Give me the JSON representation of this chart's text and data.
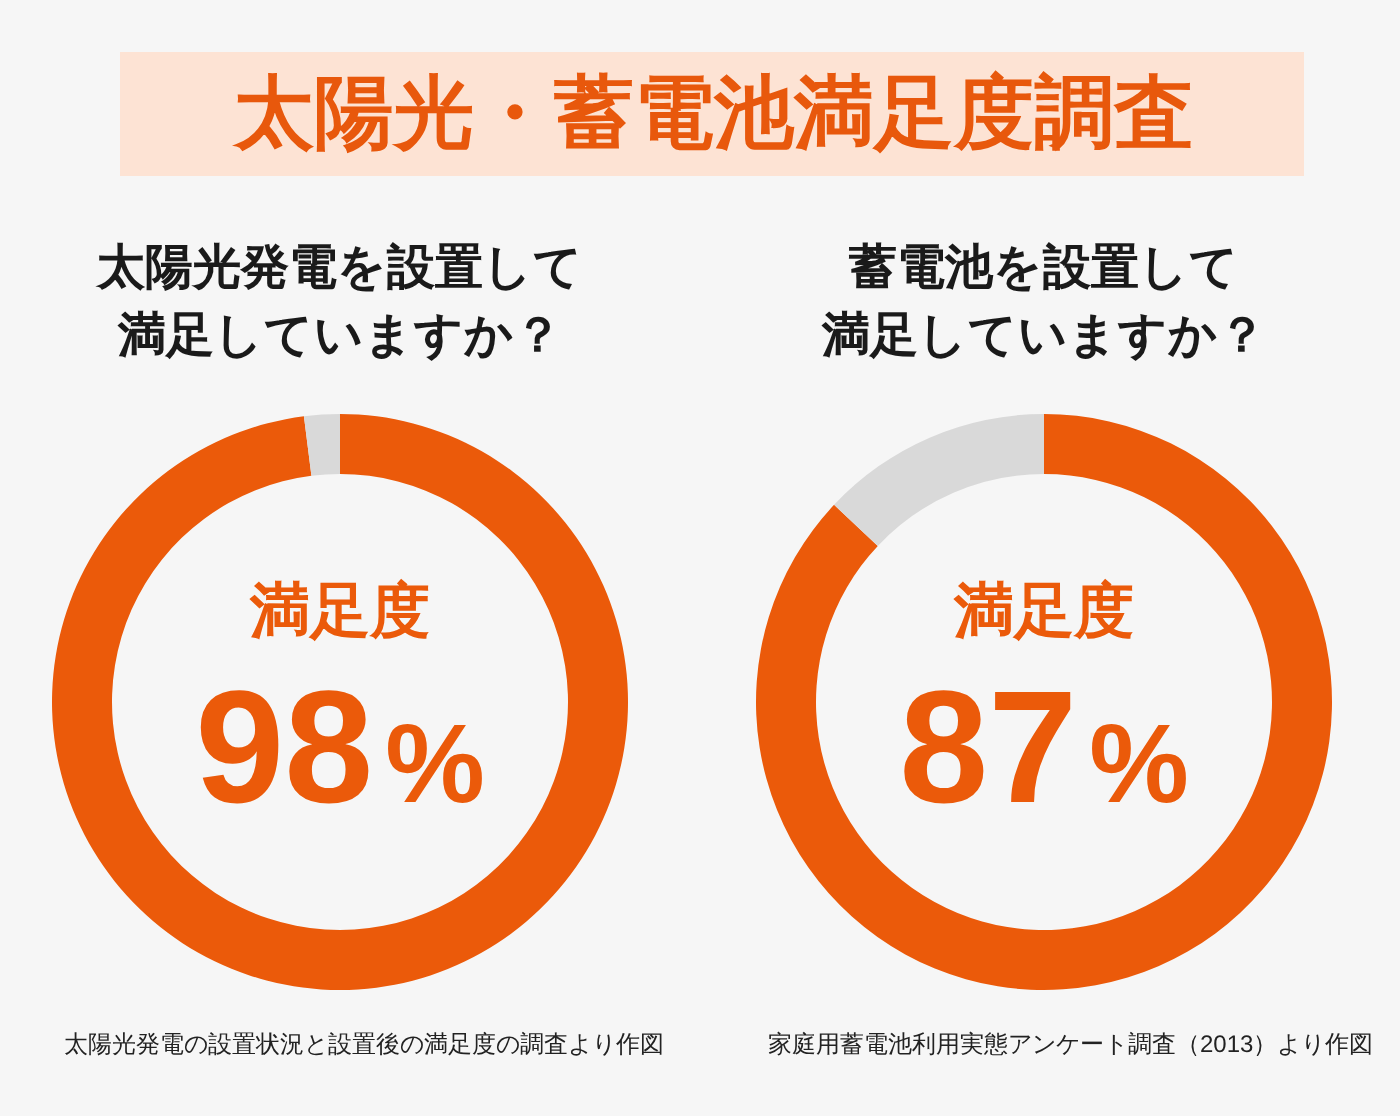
{
  "chart_data": [
    {
      "type": "other",
      "title": "太陽光・蓄電池満足度調査"
    },
    {
      "type": "donut",
      "title": "太陽光発電を設置して満足していますか？",
      "categories": [
        "満足度",
        null
      ],
      "values": [
        98,
        2
      ],
      "colors": [
        "#eb5a0a",
        "#d9d9d9"
      ],
      "value_labels": [
        "98%",
        null
      ],
      "annotations": [
        "太陽光発電の設置状況と設置後の満足度の調査より作図"
      ]
    },
    {
      "type": "donut",
      "title": "蓄電池を設置して満足していますか？",
      "categories": [
        "満足度",
        null
      ],
      "values": [
        87,
        13
      ],
      "colors": [
        "#eb5a0a",
        "#d9d9d9"
      ],
      "value_labels": [
        "87%",
        null
      ],
      "annotations": [
        "家庭用蓄電池利用実態アンケート調査（2013）より作図"
      ]
    }
  ]
}
